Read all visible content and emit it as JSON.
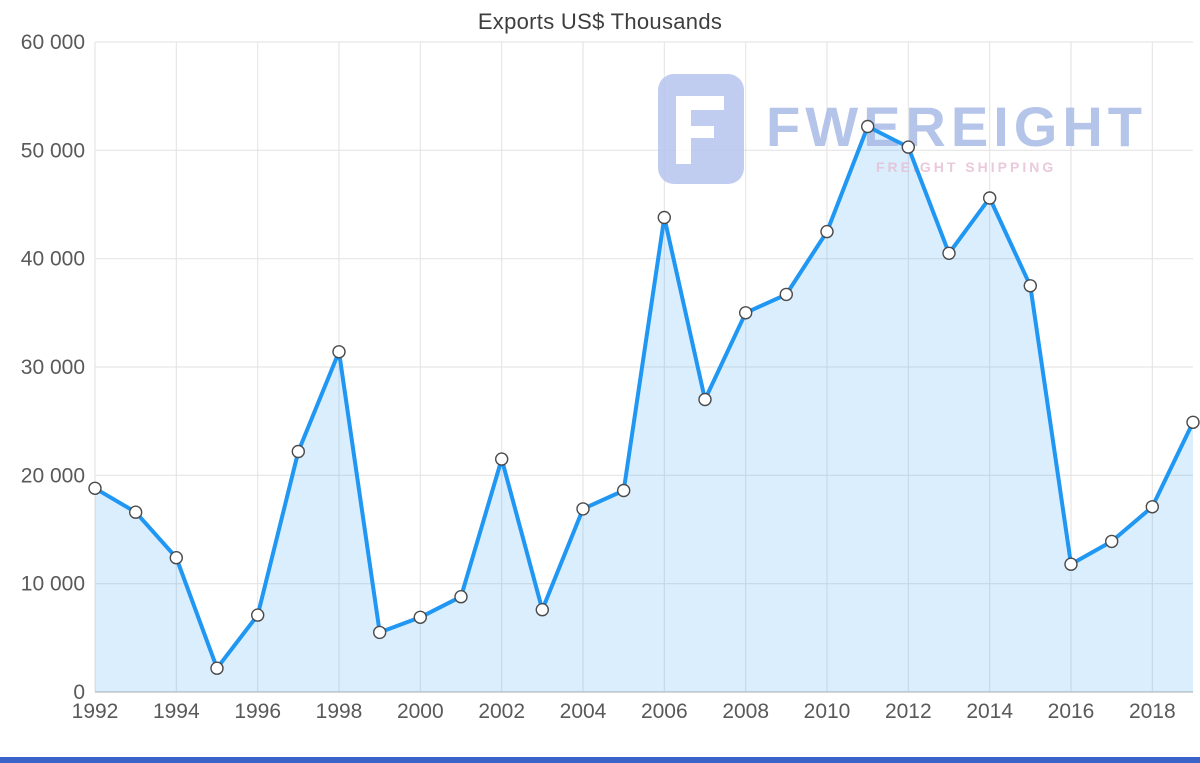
{
  "chart_data": {
    "type": "area",
    "title": "Exports US$ Thousands",
    "xlabel": "",
    "ylabel": "",
    "x": [
      1992,
      1993,
      1994,
      1995,
      1996,
      1997,
      1998,
      1999,
      2000,
      2001,
      2002,
      2003,
      2004,
      2005,
      2006,
      2007,
      2008,
      2009,
      2010,
      2011,
      2012,
      2013,
      2014,
      2015,
      2016,
      2017,
      2018,
      2019
    ],
    "values": [
      18800,
      16600,
      12400,
      2200,
      7100,
      22200,
      31400,
      5500,
      6900,
      8800,
      21500,
      7600,
      16900,
      18600,
      43800,
      27000,
      35000,
      36700,
      42500,
      52200,
      50300,
      40500,
      45600,
      37500,
      11800,
      13900,
      17100,
      24900
    ],
    "xticks": [
      1992,
      1994,
      1996,
      1998,
      2000,
      2002,
      2004,
      2006,
      2008,
      2010,
      2012,
      2014,
      2016,
      2018
    ],
    "yticks": [
      0,
      10000,
      20000,
      30000,
      40000,
      50000,
      60000
    ],
    "ytick_labels": [
      "0",
      "10 000",
      "20 000",
      "30 000",
      "40 000",
      "50 000",
      "60 000"
    ],
    "ylim": [
      0,
      60000
    ],
    "grid": true,
    "legend": "none",
    "colors": {
      "line": "#1f97f3",
      "area_opacity": 0.16,
      "grid": "#e2e2e2",
      "axis": "#c9c9c9",
      "marker_stroke": "#4a4a4a",
      "label_text": "#595959",
      "title_text": "#3e3e3e"
    }
  },
  "watermark": {
    "brand": "FWEREIGHT",
    "tagline": "FREIGHT SHIPPING",
    "logo_color": "#b6c5ee",
    "brand_color": "#a9bae6",
    "tagline_color": "#e6c0d4"
  },
  "footer": {
    "color": "#3c64c8"
  }
}
